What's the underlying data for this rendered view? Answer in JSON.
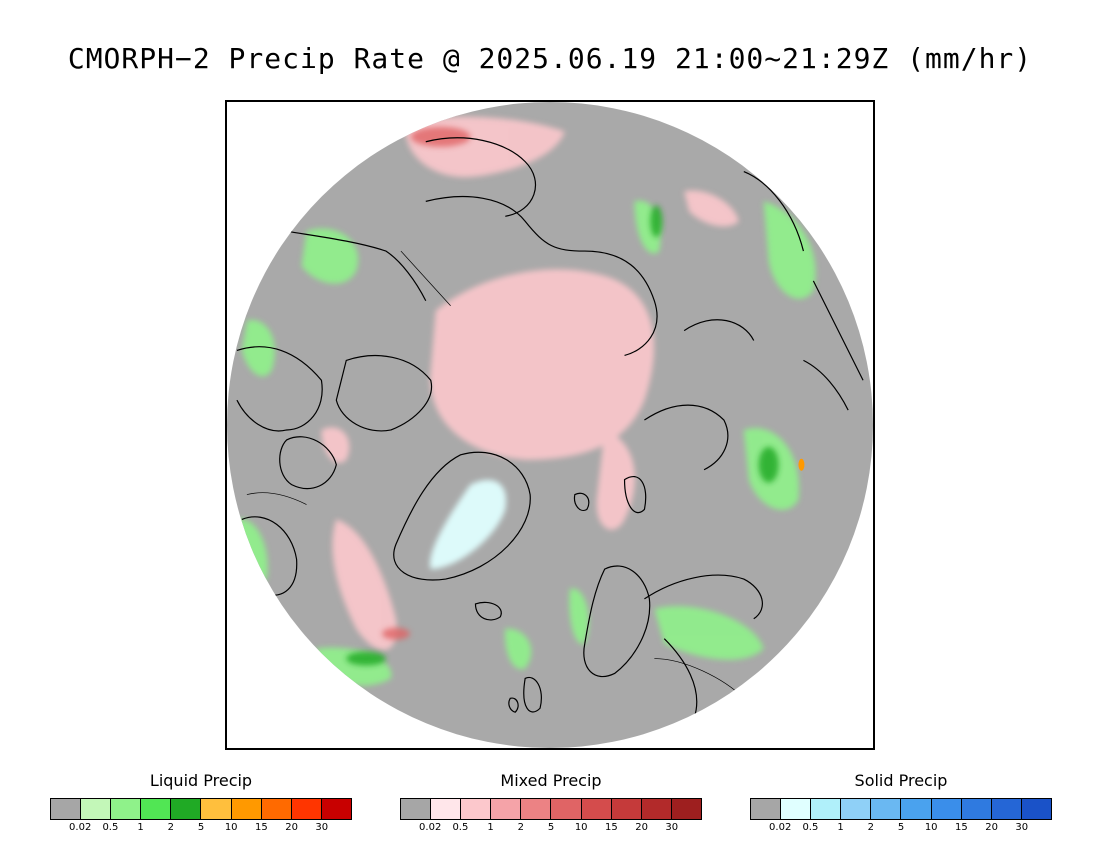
{
  "title": "CMORPH−2 Precip Rate @ 2025.06.19 21:00~21:29Z (mm/hr)",
  "map": {
    "projection": "polar stereographic (north pole)",
    "background_color": "#a9a9a9",
    "coastline_color": "#000000"
  },
  "legends": [
    {
      "id": "liquid",
      "title": "Liquid Precip",
      "colors": [
        "#a6a6a6",
        "#c3f7b8",
        "#8ff28a",
        "#51e654",
        "#20aa25",
        "#ffbf3d",
        "#ff9900",
        "#ff6a00",
        "#ff3500",
        "#c80000"
      ],
      "ticks": [
        "0.02",
        "0.5",
        "1",
        "2",
        "5",
        "10",
        "15",
        "20",
        "30"
      ]
    },
    {
      "id": "mixed",
      "title": "Mixed Precip",
      "colors": [
        "#a6a6a6",
        "#ffe6ea",
        "#fcc8cc",
        "#f5a3a8",
        "#ec8284",
        "#e06465",
        "#d44c4c",
        "#c53a3a",
        "#b22a2a",
        "#9e1f1f"
      ],
      "ticks": [
        "0.02",
        "0.5",
        "1",
        "2",
        "5",
        "10",
        "15",
        "20",
        "30"
      ]
    },
    {
      "id": "solid",
      "title": "Solid Precip",
      "colors": [
        "#a6a6a6",
        "#e0ffff",
        "#b0f0fa",
        "#8fd0f7",
        "#6ab8f2",
        "#4aa2ee",
        "#3a8eea",
        "#2f7ae0",
        "#2566d6",
        "#1a52c8"
      ],
      "ticks": [
        "0.02",
        "0.5",
        "1",
        "2",
        "5",
        "10",
        "15",
        "20",
        "30"
      ]
    }
  ]
}
